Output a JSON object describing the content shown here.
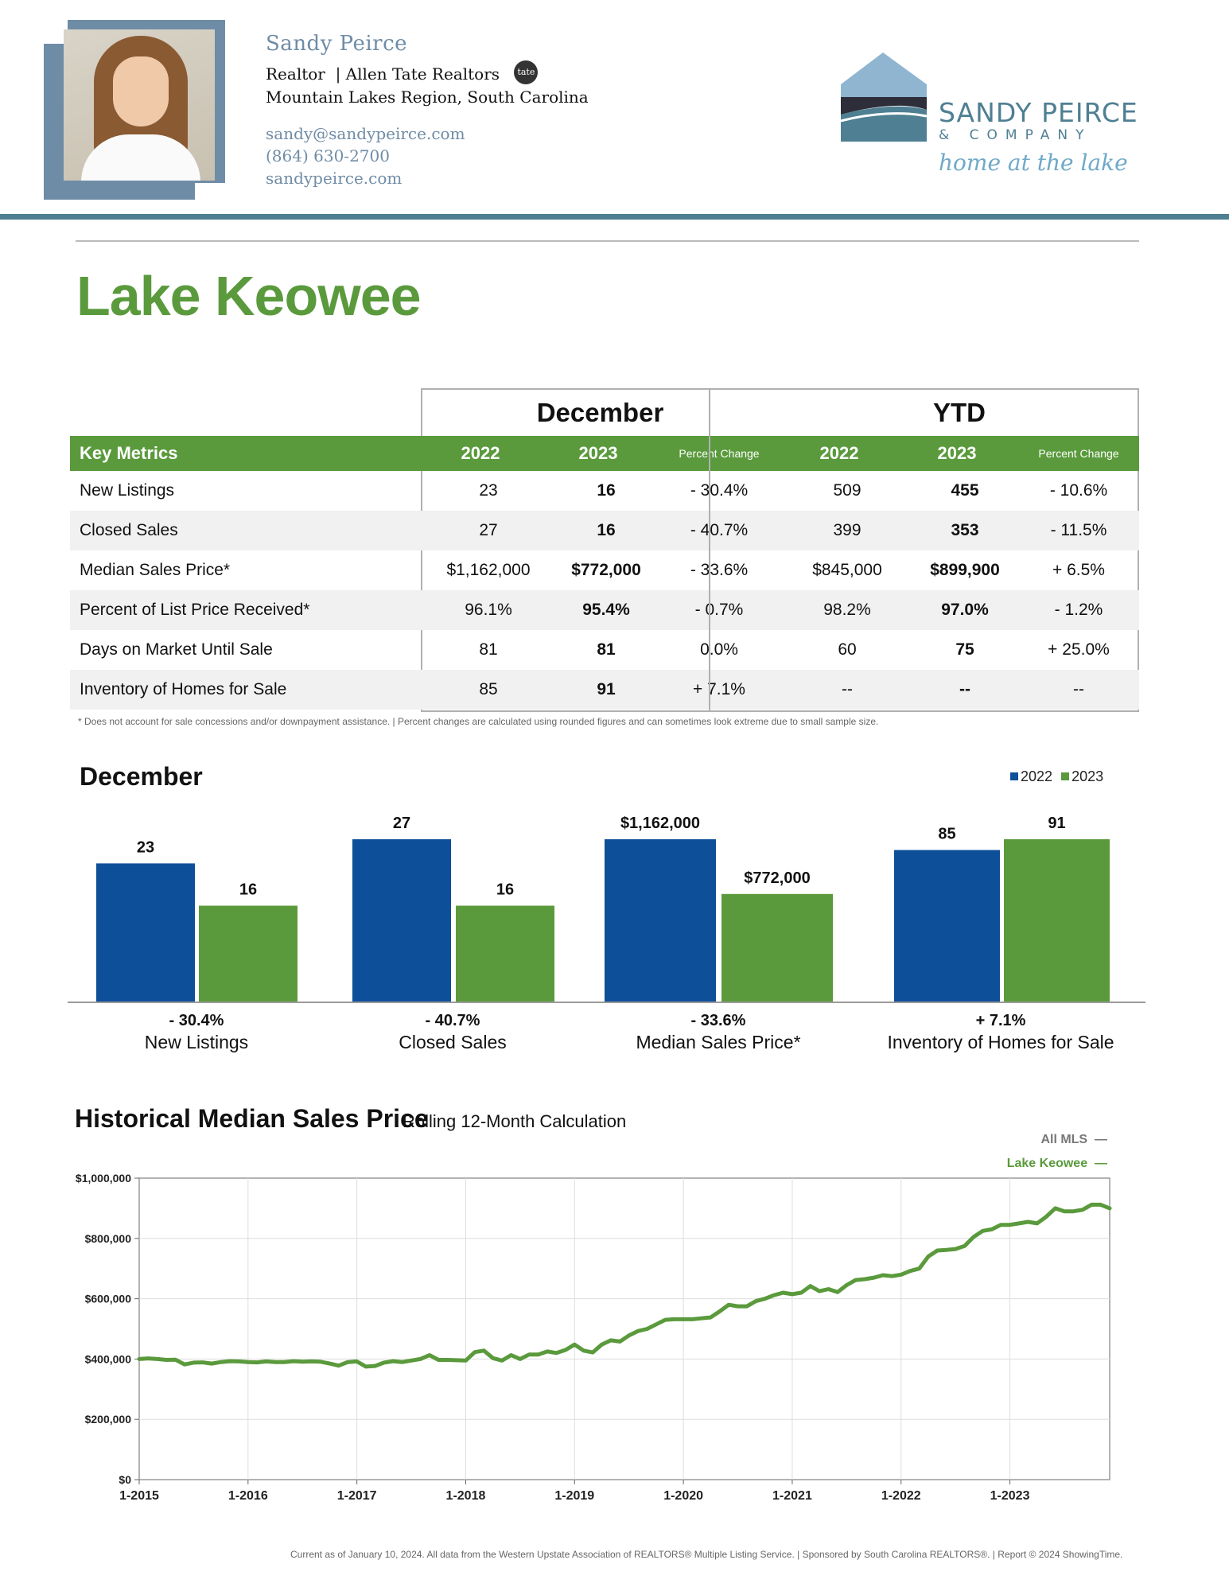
{
  "agent": {
    "name": "Sandy Peirce",
    "role": "Realtor",
    "firm": "Allen Tate Realtors",
    "badge": "tate",
    "region": "Mountain Lakes Region, South Carolina",
    "email": "sandy@sandypeirce.com",
    "phone": "(864) 630-2700",
    "website": "sandypeirce.com"
  },
  "logo": {
    "line1": "SANDY PEIRCE",
    "line2": "& COMPANY",
    "tagline": "home at the lake",
    "colors": {
      "roof": "#8fb5d1",
      "water": "#4e7f92",
      "dark": "#2e2e3a"
    }
  },
  "page_title": "Lake Keowee",
  "table": {
    "period_month": "December",
    "period_ytd": "YTD",
    "header": {
      "key_metrics": "Key Metrics",
      "y1": "2022",
      "y2": "2023",
      "pct": "Percent Change"
    },
    "rows": [
      {
        "metric": "New Listings",
        "m2022": "23",
        "m2023": "16",
        "mchg": "- 30.4%",
        "y2022": "509",
        "y2023": "455",
        "ychg": "- 10.6%"
      },
      {
        "metric": "Closed Sales",
        "m2022": "27",
        "m2023": "16",
        "mchg": "- 40.7%",
        "y2022": "399",
        "y2023": "353",
        "ychg": "- 11.5%"
      },
      {
        "metric": "Median Sales Price*",
        "m2022": "$1,162,000",
        "m2023": "$772,000",
        "mchg": "- 33.6%",
        "y2022": "$845,000",
        "y2023": "$899,900",
        "ychg": "+ 6.5%"
      },
      {
        "metric": "Percent of List Price Received*",
        "m2022": "96.1%",
        "m2023": "95.4%",
        "mchg": "- 0.7%",
        "y2022": "98.2%",
        "y2023": "97.0%",
        "ychg": "- 1.2%"
      },
      {
        "metric": "Days on Market Until Sale",
        "m2022": "81",
        "m2023": "81",
        "mchg": "0.0%",
        "y2022": "60",
        "y2023": "75",
        "ychg": "+ 25.0%"
      },
      {
        "metric": "Inventory of Homes for Sale",
        "m2022": "85",
        "m2023": "91",
        "mchg": "+ 7.1%",
        "y2022": "--",
        "y2023": "--",
        "ychg": "--"
      }
    ],
    "footnote": "* Does not account for sale concessions and/or downpayment assistance.  |  Percent changes are calculated using rounded figures and can sometimes look extreme due to small sample size."
  },
  "bar_section_title": "December",
  "line_section": {
    "title": "Historical Median Sales Price",
    "subtitle": "Rolling 12-Month Calculation",
    "legend_all": "All MLS",
    "legend_lake": "Lake Keowee"
  },
  "footer": "Current as of January 10, 2024. All data from the Western Upstate Association of REALTORS® Multiple Listing Service.  |  Sponsored by South Carolina REALTORS®.  |  Report © 2024 ShowingTime.",
  "colors": {
    "green": "#5a9a3c",
    "blue": "#0e4f9a",
    "steel": "#4e7f92"
  },
  "chart_data": [
    {
      "type": "bar",
      "title": "December",
      "legend": [
        "2022",
        "2023"
      ],
      "series_colors": [
        "#0e4f9a",
        "#5a9a3c"
      ],
      "groups": [
        {
          "name": "New Listings",
          "v2022": 23,
          "v2023": 16,
          "l2022": "23",
          "l2023": "16",
          "change": "- 30.4%",
          "scale_max": 27
        },
        {
          "name": "Closed Sales",
          "v2022": 27,
          "v2023": 16,
          "l2022": "27",
          "l2023": "16",
          "change": "- 40.7%",
          "scale_max": 27
        },
        {
          "name": "Median Sales Price*",
          "v2022": 1162000,
          "v2023": 772000,
          "l2022": "$1,162,000",
          "l2023": "$772,000",
          "change": "- 33.6%",
          "scale_max": 1162000
        },
        {
          "name": "Inventory of Homes for Sale",
          "v2022": 85,
          "v2023": 91,
          "l2022": "85",
          "l2023": "91",
          "change": "+ 7.1%",
          "scale_max": 91
        }
      ]
    },
    {
      "type": "line",
      "title": "Historical Median Sales Price",
      "subtitle": "Rolling 12-Month Calculation",
      "series": [
        {
          "name": "Lake Keowee",
          "color": "#5a9a3c",
          "x_start": "2015-01",
          "values": [
            400000,
            402000,
            400000,
            397000,
            398000,
            382000,
            388000,
            389000,
            385000,
            390000,
            393000,
            392000,
            390000,
            389000,
            392000,
            390000,
            390000,
            393000,
            391000,
            392000,
            391000,
            385000,
            378000,
            390000,
            392000,
            375000,
            377000,
            388000,
            393000,
            390000,
            395000,
            400000,
            413000,
            397000,
            397000,
            396000,
            395000,
            423000,
            428000,
            403000,
            395000,
            413000,
            400000,
            415000,
            415000,
            425000,
            420000,
            430000,
            448000,
            428000,
            422000,
            448000,
            462000,
            458000,
            478000,
            493000,
            500000,
            515000,
            530000,
            532000,
            532000,
            532000,
            535000,
            538000,
            558000,
            580000,
            575000,
            575000,
            592000,
            600000,
            612000,
            620000,
            615000,
            620000,
            642000,
            625000,
            632000,
            622000,
            645000,
            662000,
            665000,
            670000,
            678000,
            675000,
            680000,
            692000,
            700000,
            740000,
            760000,
            762000,
            765000,
            775000,
            805000,
            825000,
            830000,
            845000,
            845000,
            850000,
            855000,
            850000,
            872000,
            900000,
            890000,
            890000,
            895000,
            912000,
            912000,
            900000
          ]
        }
      ],
      "x_ticks": [
        "1-2015",
        "1-2016",
        "1-2017",
        "1-2018",
        "1-2019",
        "1-2020",
        "1-2021",
        "1-2022",
        "1-2023"
      ],
      "y_ticks": [
        "$0",
        "$200,000",
        "$400,000",
        "$600,000",
        "$800,000",
        "$1,000,000"
      ],
      "ylim": [
        0,
        1000000
      ],
      "grid": true,
      "legend": [
        "All MLS",
        "Lake Keowee"
      ]
    }
  ]
}
